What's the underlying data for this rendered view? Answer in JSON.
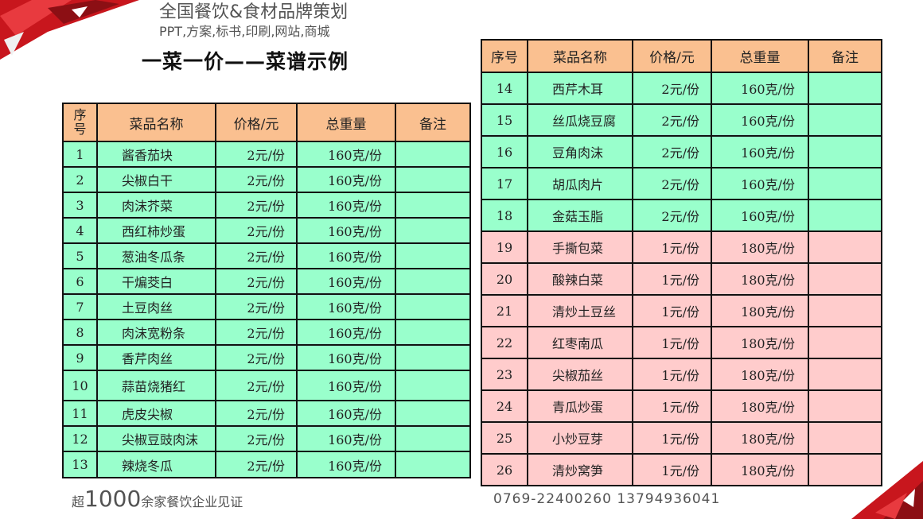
{
  "title": "一菜一价——菜谱示例",
  "colors": {
    "header": "#fac090",
    "green_row": "#99ffcc",
    "pink_row": "#ffcccc",
    "accent": "#d0202a"
  },
  "headers": {
    "left_num": "序号",
    "num": "序号",
    "name": "菜品名称",
    "price": "价格/元",
    "weight": "总重量",
    "note": "备注"
  },
  "left_table": [
    {
      "num": "1",
      "name": "酱香茄块",
      "price": "2元/份",
      "weight": "160克/份",
      "note": ""
    },
    {
      "num": "2",
      "name": "尖椒白干",
      "price": "2元/份",
      "weight": "160克/份",
      "note": ""
    },
    {
      "num": "3",
      "name": "肉沫芥菜",
      "price": "2元/份",
      "weight": "160克/份",
      "note": ""
    },
    {
      "num": "4",
      "name": "西红柿炒蛋",
      "price": "2元/份",
      "weight": "160克/份",
      "note": ""
    },
    {
      "num": "5",
      "name": "葱油冬瓜条",
      "price": "2元/份",
      "weight": "160克/份",
      "note": ""
    },
    {
      "num": "6",
      "name": "干煸茭白",
      "price": "2元/份",
      "weight": "160克/份",
      "note": ""
    },
    {
      "num": "7",
      "name": "土豆肉丝",
      "price": "2元/份",
      "weight": "160克/份",
      "note": ""
    },
    {
      "num": "8",
      "name": "肉沫宽粉条",
      "price": "2元/份",
      "weight": "160克/份",
      "note": ""
    },
    {
      "num": "9",
      "name": "香芹肉丝",
      "price": "2元/份",
      "weight": "160克/份",
      "note": ""
    },
    {
      "num": "10",
      "name": "蒜苗烧猪红",
      "price": "2元/份",
      "weight": "160克/份",
      "note": ""
    },
    {
      "num": "11",
      "name": "虎皮尖椒",
      "price": "2元/份",
      "weight": "160克/份",
      "note": ""
    },
    {
      "num": "12",
      "name": "尖椒豆豉肉沫",
      "price": "2元/份",
      "weight": "160克/份",
      "note": ""
    },
    {
      "num": "13",
      "name": "辣烧冬瓜",
      "price": "2元/份",
      "weight": "160克/份",
      "note": ""
    }
  ],
  "right_table": [
    {
      "num": "14",
      "name": "西芹木耳",
      "price": "2元/份",
      "weight": "160克/份",
      "note": "",
      "color": "green"
    },
    {
      "num": "15",
      "name": "丝瓜烧豆腐",
      "price": "2元/份",
      "weight": "160克/份",
      "note": "",
      "color": "green"
    },
    {
      "num": "16",
      "name": "豆角肉沫",
      "price": "2元/份",
      "weight": "160克/份",
      "note": "",
      "color": "green"
    },
    {
      "num": "17",
      "name": "胡瓜肉片",
      "price": "2元/份",
      "weight": "160克/份",
      "note": "",
      "color": "green"
    },
    {
      "num": "18",
      "name": "金菇玉脂",
      "price": "2元/份",
      "weight": "160克/份",
      "note": "",
      "color": "green"
    },
    {
      "num": "19",
      "name": "手撕包菜",
      "price": "1元/份",
      "weight": "180克/份",
      "note": "",
      "color": "pink"
    },
    {
      "num": "20",
      "name": "酸辣白菜",
      "price": "1元/份",
      "weight": "180克/份",
      "note": "",
      "color": "pink"
    },
    {
      "num": "21",
      "name": "清炒土豆丝",
      "price": "1元/份",
      "weight": "180克/份",
      "note": "",
      "color": "pink"
    },
    {
      "num": "22",
      "name": "红枣南瓜",
      "price": "1元/份",
      "weight": "180克/份",
      "note": "",
      "color": "pink"
    },
    {
      "num": "23",
      "name": "尖椒茄丝",
      "price": "1元/份",
      "weight": "180克/份",
      "note": "",
      "color": "pink"
    },
    {
      "num": "24",
      "name": "青瓜炒蛋",
      "price": "1元/份",
      "weight": "180克/份",
      "note": "",
      "color": "pink"
    },
    {
      "num": "25",
      "name": "小炒豆芽",
      "price": "1元/份",
      "weight": "180克/份",
      "note": "",
      "color": "pink"
    },
    {
      "num": "26",
      "name": "清炒窝笋",
      "price": "1元/份",
      "weight": "180克/份",
      "note": "",
      "color": "pink"
    }
  ],
  "watermark": {
    "line1": "全国餐饮&食材品牌策划",
    "line2": "PPT,方案,标书,印刷,网站,商城",
    "line3_pre": "超",
    "line3_big": "1000",
    "line3_post": "余家餐饮企业见证",
    "line4": "0769-22400260  13794936041"
  }
}
